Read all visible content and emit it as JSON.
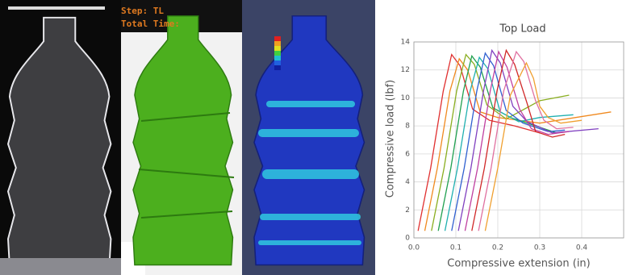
{
  "overlay": {
    "step": "Step: TL",
    "time": "Total Time:"
  },
  "chart_data": {
    "type": "line",
    "title": "Top Load",
    "x_label": "Compressive extension (in)",
    "y_label": "Compressive load (lbf)",
    "xlim": [
      0,
      0.5
    ],
    "xticks": [
      {
        "value": 0,
        "label": "0.0"
      },
      0.1,
      0.2,
      0.3,
      0.4
    ],
    "ylim": [
      0,
      14
    ],
    "yticks": [
      0,
      2,
      4,
      6,
      8,
      10,
      12,
      14
    ],
    "grid": true,
    "series": [
      {
        "color": "#e03030",
        "x": [
          0.01,
          0.04,
          0.07,
          0.09,
          0.11,
          0.14,
          0.18,
          0.24,
          0.3
        ],
        "values": [
          0.5,
          5,
          10.5,
          13.1,
          12.3,
          9.2,
          8.4,
          8,
          7.5
        ]
      },
      {
        "color": "#f08a20",
        "x": [
          0.026,
          0.056,
          0.086,
          0.108,
          0.128,
          0.158,
          0.2,
          0.3,
          0.47
        ],
        "values": [
          0.5,
          5,
          10.5,
          12.8,
          12,
          9,
          8.6,
          8.2,
          9
        ]
      },
      {
        "color": "#8aae20",
        "x": [
          0.042,
          0.072,
          0.102,
          0.124,
          0.144,
          0.174,
          0.22,
          0.3,
          0.37
        ],
        "values": [
          0.5,
          5,
          10.5,
          13.1,
          12.4,
          9.5,
          8.5,
          9.8,
          10.2
        ]
      },
      {
        "color": "#20a050",
        "x": [
          0.058,
          0.088,
          0.118,
          0.138,
          0.158,
          0.188,
          0.23,
          0.28,
          0.34
        ],
        "values": [
          0.5,
          5,
          10.5,
          13,
          12.2,
          9.3,
          8.6,
          8.1,
          7.5
        ]
      },
      {
        "color": "#20b0b0",
        "x": [
          0.074,
          0.104,
          0.134,
          0.156,
          0.176,
          0.206,
          0.25,
          0.3,
          0.38
        ],
        "values": [
          0.5,
          5,
          10.5,
          12.9,
          12.1,
          9,
          8.3,
          8.6,
          8.8
        ]
      },
      {
        "color": "#3060d0",
        "x": [
          0.09,
          0.12,
          0.15,
          0.17,
          0.19,
          0.22,
          0.26,
          0.32,
          0.36
        ],
        "values": [
          0.5,
          5,
          10.5,
          13.2,
          12.3,
          9.1,
          8.2,
          7.6,
          7.7
        ]
      },
      {
        "color": "#8040c0",
        "x": [
          0.106,
          0.136,
          0.166,
          0.186,
          0.206,
          0.236,
          0.27,
          0.33,
          0.44
        ],
        "values": [
          0.5,
          5,
          10.5,
          13.4,
          12.5,
          9.4,
          8.3,
          7.5,
          7.8
        ]
      },
      {
        "color": "#c040a0",
        "x": [
          0.122,
          0.152,
          0.182,
          0.202,
          0.222,
          0.252,
          0.28,
          0.32,
          0.37
        ],
        "values": [
          0.5,
          5,
          10.5,
          13.3,
          12.2,
          9.2,
          7.8,
          7.4,
          7.6
        ]
      },
      {
        "color": "#d02828",
        "x": [
          0.138,
          0.168,
          0.198,
          0.22,
          0.24,
          0.27,
          0.29,
          0.33,
          0.36
        ],
        "values": [
          0.5,
          5,
          10.5,
          13.4,
          12.4,
          9.6,
          7.6,
          7.2,
          7.4
        ]
      },
      {
        "color": "#e070a0",
        "x": [
          0.154,
          0.184,
          0.214,
          0.244,
          0.262,
          0.29,
          0.31,
          0.34,
          0.38
        ],
        "values": [
          0.5,
          5,
          10.5,
          13.3,
          12.6,
          9.8,
          8.4,
          7.8,
          7.9
        ]
      },
      {
        "color": "#f0a030",
        "x": [
          0.17,
          0.2,
          0.23,
          0.268,
          0.285,
          0.3,
          0.32,
          0.35,
          0.4
        ],
        "values": [
          0.5,
          5,
          10.2,
          12.5,
          11.4,
          9.4,
          8.6,
          8.2,
          8.4
        ]
      }
    ]
  }
}
